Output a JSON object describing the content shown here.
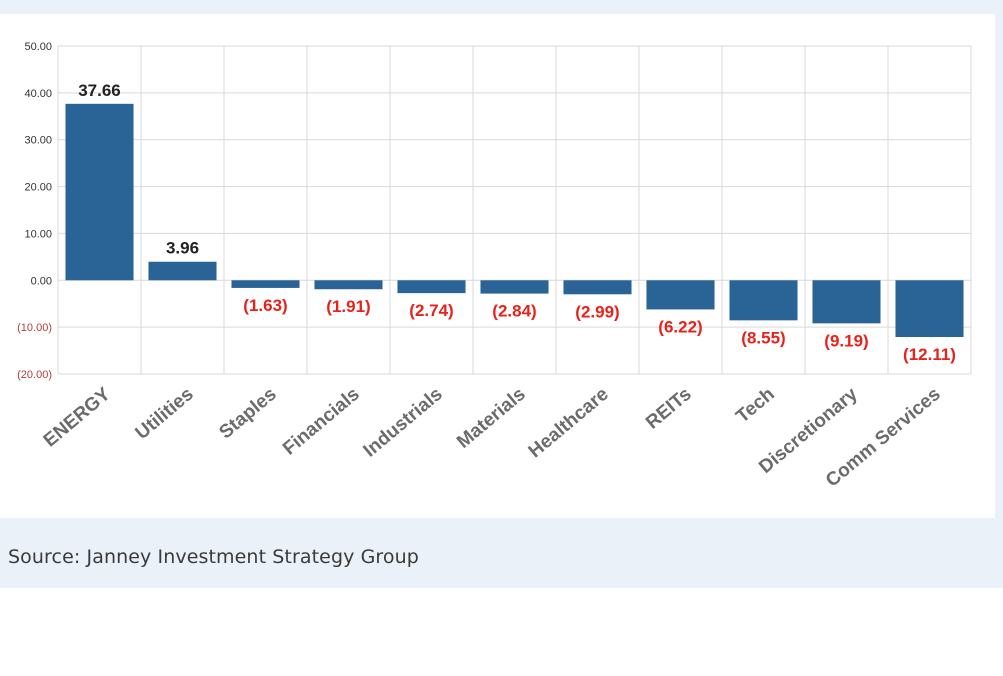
{
  "chart_data": {
    "type": "bar",
    "categories": [
      "ENERGY",
      "Utilities",
      "Staples",
      "Financials",
      "Industrials",
      "Materials",
      "Healthcare",
      "REITs",
      "Tech",
      "Discretionary",
      "Comm Services"
    ],
    "values": [
      37.66,
      3.96,
      -1.63,
      -1.91,
      -2.74,
      -2.84,
      -2.99,
      -6.22,
      -8.55,
      -9.19,
      -12.11
    ],
    "value_labels": [
      "37.66",
      "3.96",
      "(1.63)",
      "(1.91)",
      "(2.74)",
      "(2.84)",
      "(2.99)",
      "(6.22)",
      "(8.55)",
      "(9.19)",
      "(12.11)"
    ],
    "ylim": [
      -20,
      50
    ],
    "yticks": [
      50,
      40,
      30,
      20,
      10,
      0,
      -10,
      -20
    ],
    "ytick_labels": [
      "50.00",
      "40.00",
      "30.00",
      "20.00",
      "10.00",
      "0.00",
      "(10.00)",
      "(20.00)"
    ],
    "grid": true,
    "colors": {
      "bar": "#2a6496",
      "positive_label": "#222222",
      "negative_label": "#e8221b",
      "axis_label": "#6b6b6b"
    }
  },
  "source": "Source: Janney Investment Strategy Group"
}
